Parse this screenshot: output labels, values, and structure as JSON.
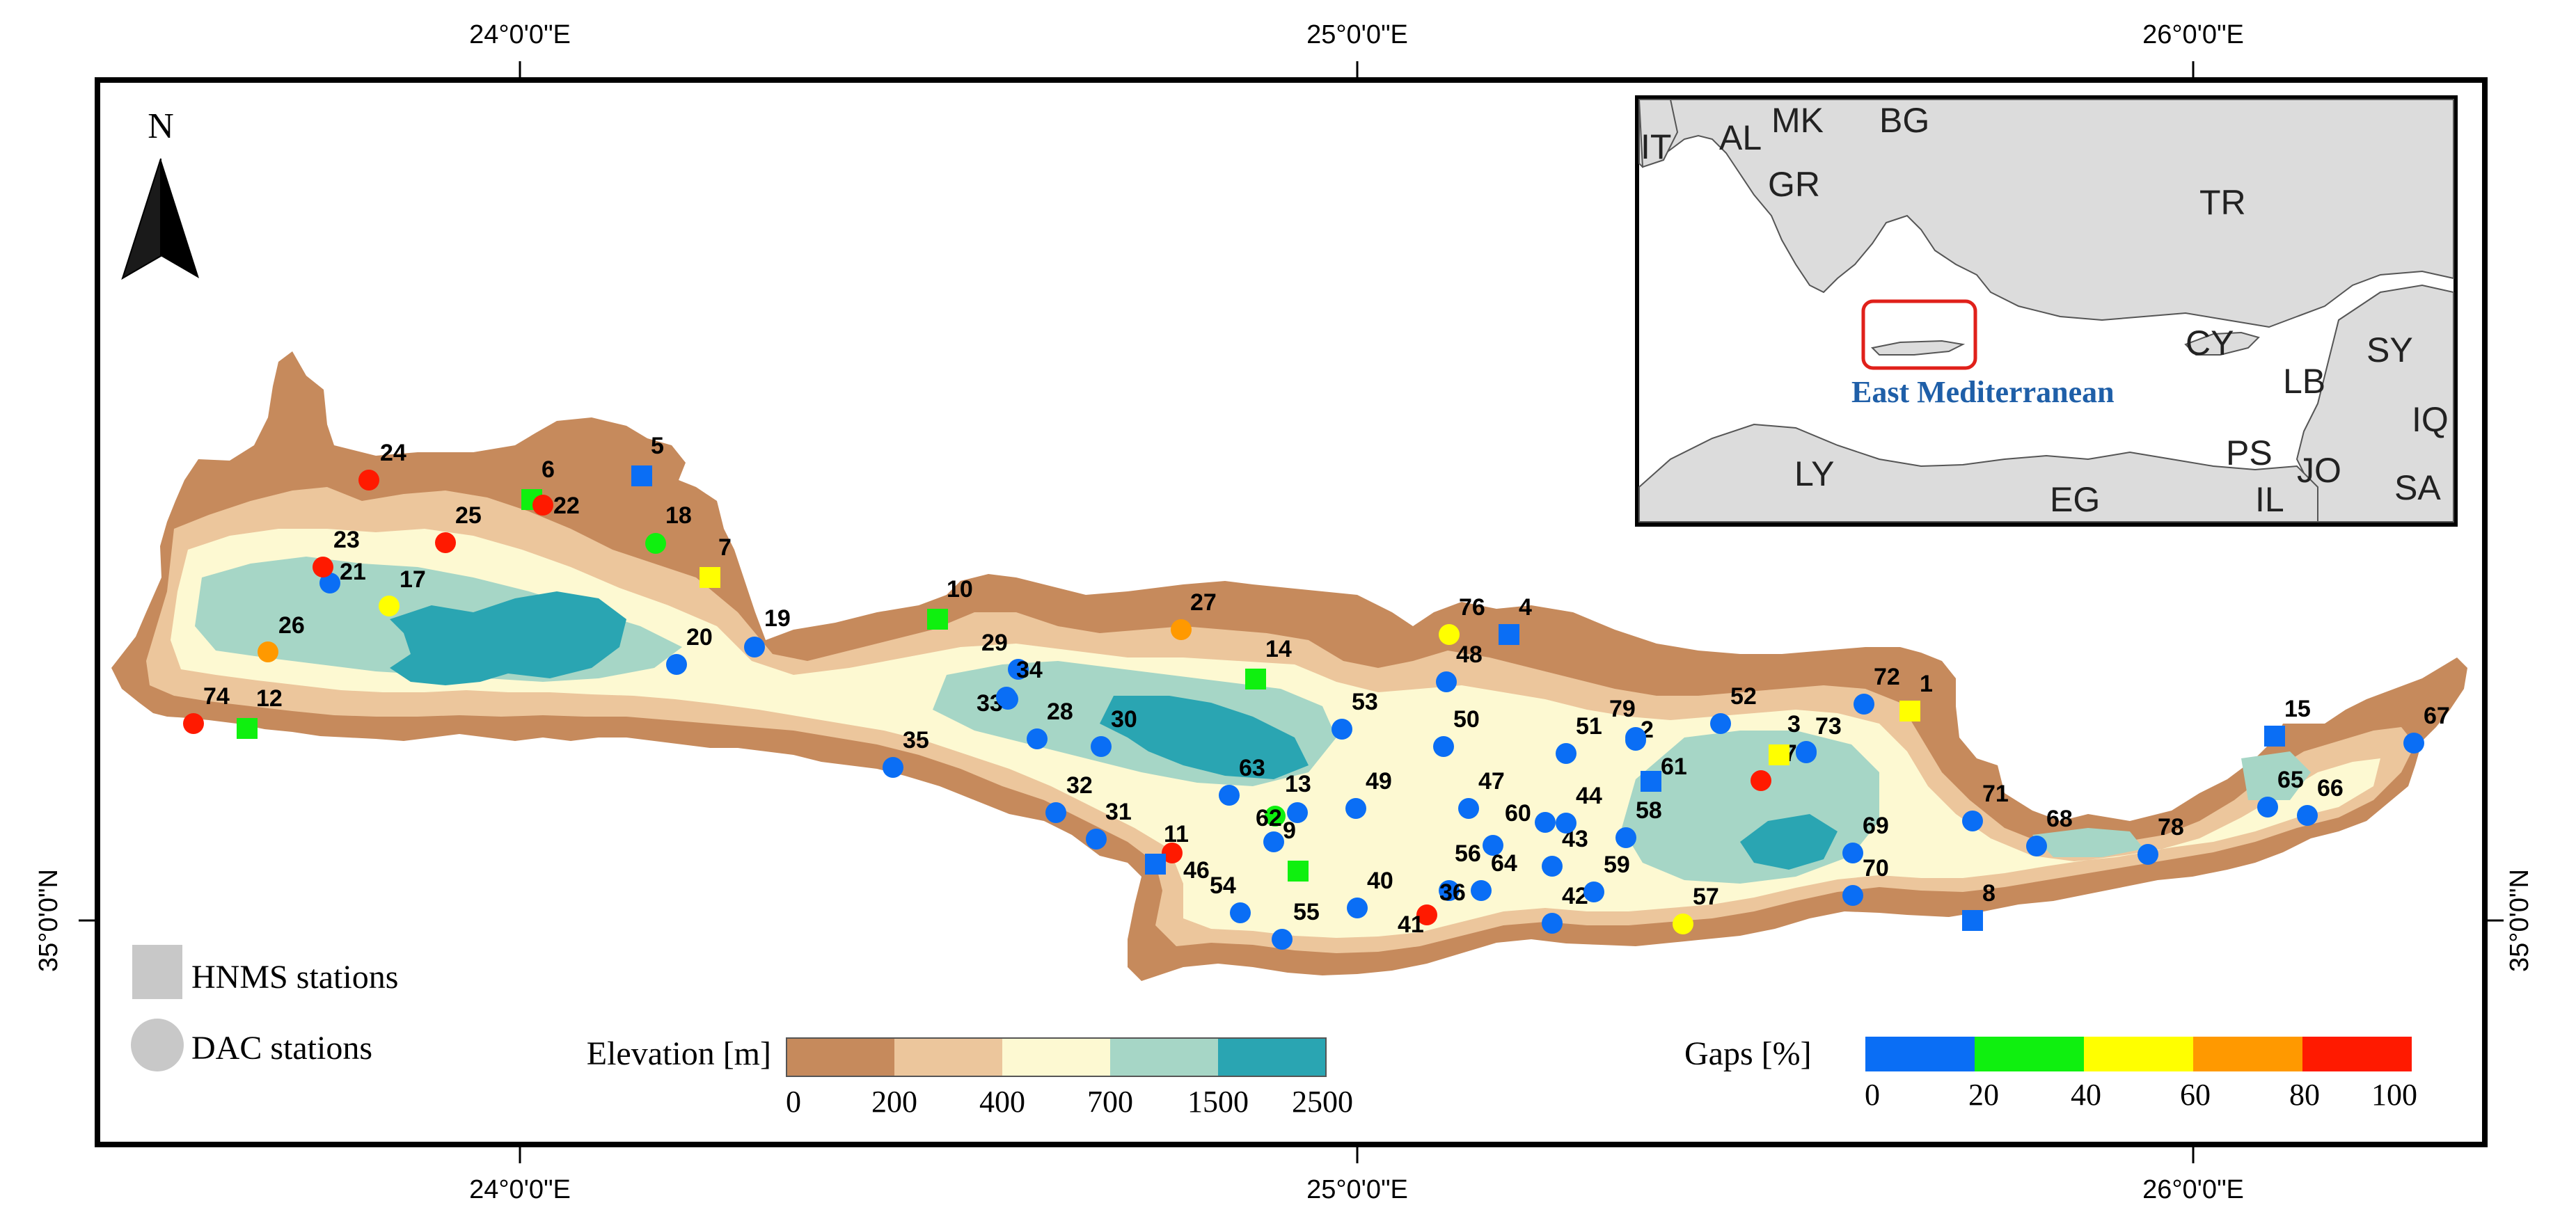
{
  "coordinates": {
    "top": [
      "24°0'0\"E",
      "25°0'0\"E",
      "26°0'0\"E"
    ],
    "bottom": [
      "24°0'0\"E",
      "25°0'0\"E",
      "26°0'0\"E"
    ],
    "left": "35°0'0\"N",
    "right": "35°0'0\"N"
  },
  "north_arrow": {
    "label": "N",
    "icon": "north-arrow-icon"
  },
  "station_types": {
    "hnms": {
      "label": "HNMS stations",
      "symbol": "square"
    },
    "dac": {
      "label": "DAC  stations",
      "symbol": "circle"
    }
  },
  "elevation_legend": {
    "title": "Elevation [m]",
    "ticks": [
      "0",
      "200",
      "400",
      "700",
      "1500",
      "2500"
    ],
    "colors": [
      "#c68a5c",
      "#ecc69c",
      "#fdf9d2",
      "#a6d6c6",
      "#2aa5b2"
    ]
  },
  "gaps_legend": {
    "title": "Gaps [%]",
    "ticks": [
      "0",
      "20",
      "40",
      "60",
      "80",
      "100"
    ],
    "colors": [
      "#0a6ef5",
      "#0ff00f",
      "#ffff00",
      "#ff9900",
      "#ff1a00"
    ]
  },
  "inset": {
    "region_label": "East Mediterranean",
    "countries": [
      "IT",
      "AL",
      "MK",
      "BG",
      "GR",
      "TR",
      "CY",
      "SY",
      "LB",
      "IQ",
      "PS",
      "JO",
      "IL",
      "SA",
      "LY",
      "EG"
    ]
  },
  "stations": [
    {
      "id": "1",
      "type": "hnms",
      "gap": "yellow"
    },
    {
      "id": "2",
      "type": "dac",
      "gap": "blue"
    },
    {
      "id": "3",
      "type": "dac",
      "gap": "blue"
    },
    {
      "id": "4",
      "type": "hnms",
      "gap": "blue"
    },
    {
      "id": "5",
      "type": "hnms",
      "gap": "blue"
    },
    {
      "id": "6",
      "type": "hnms",
      "gap": "green"
    },
    {
      "id": "7",
      "type": "hnms",
      "gap": "yellow"
    },
    {
      "id": "8",
      "type": "hnms",
      "gap": "blue"
    },
    {
      "id": "9",
      "type": "dac",
      "gap": "blue"
    },
    {
      "id": "10",
      "type": "hnms",
      "gap": "green"
    },
    {
      "id": "11",
      "type": "dac",
      "gap": "red"
    },
    {
      "id": "12",
      "type": "hnms",
      "gap": "green"
    },
    {
      "id": "13",
      "type": "dac",
      "gap": "blue"
    },
    {
      "id": "14",
      "type": "hnms",
      "gap": "green"
    },
    {
      "id": "15",
      "type": "hnms",
      "gap": "blue"
    },
    {
      "id": "17",
      "type": "dac",
      "gap": "yellow"
    },
    {
      "id": "18",
      "type": "dac",
      "gap": "green"
    },
    {
      "id": "19",
      "type": "dac",
      "gap": "blue"
    },
    {
      "id": "20",
      "type": "dac",
      "gap": "blue"
    },
    {
      "id": "21",
      "type": "dac",
      "gap": "blue"
    },
    {
      "id": "22",
      "type": "dac",
      "gap": "red"
    },
    {
      "id": "23",
      "type": "dac",
      "gap": "red"
    },
    {
      "id": "24",
      "type": "dac",
      "gap": "red"
    },
    {
      "id": "25",
      "type": "dac",
      "gap": "red"
    },
    {
      "id": "26",
      "type": "dac",
      "gap": "orange"
    },
    {
      "id": "27",
      "type": "dac",
      "gap": "orange"
    },
    {
      "id": "28",
      "type": "dac",
      "gap": "blue"
    },
    {
      "id": "29",
      "type": "dac",
      "gap": "blue"
    },
    {
      "id": "30",
      "type": "dac",
      "gap": "blue"
    },
    {
      "id": "31",
      "type": "dac",
      "gap": "blue"
    },
    {
      "id": "32",
      "type": "dac",
      "gap": "blue"
    },
    {
      "id": "33",
      "type": "dac",
      "gap": "blue"
    },
    {
      "id": "34",
      "type": "dac",
      "gap": "blue"
    },
    {
      "id": "35",
      "type": "dac",
      "gap": "blue"
    },
    {
      "id": "36",
      "type": "dac",
      "gap": "blue"
    },
    {
      "id": "40",
      "type": "dac",
      "gap": "blue"
    },
    {
      "id": "41",
      "type": "dac",
      "gap": "red"
    },
    {
      "id": "42",
      "type": "dac",
      "gap": "blue"
    },
    {
      "id": "43",
      "type": "dac",
      "gap": "blue"
    },
    {
      "id": "44",
      "type": "dac",
      "gap": "blue"
    },
    {
      "id": "46",
      "type": "hnms",
      "gap": "blue"
    },
    {
      "id": "47",
      "type": "dac",
      "gap": "blue"
    },
    {
      "id": "48",
      "type": "dac",
      "gap": "blue"
    },
    {
      "id": "49",
      "type": "dac",
      "gap": "blue"
    },
    {
      "id": "50",
      "type": "dac",
      "gap": "blue"
    },
    {
      "id": "51",
      "type": "dac",
      "gap": "blue"
    },
    {
      "id": "52",
      "type": "dac",
      "gap": "blue"
    },
    {
      "id": "53",
      "type": "dac",
      "gap": "blue"
    },
    {
      "id": "54",
      "type": "dac",
      "gap": "blue"
    },
    {
      "id": "55",
      "type": "dac",
      "gap": "blue"
    },
    {
      "id": "56",
      "type": "dac",
      "gap": "blue"
    },
    {
      "id": "57",
      "type": "dac",
      "gap": "yellow"
    },
    {
      "id": "58",
      "type": "dac",
      "gap": "blue"
    },
    {
      "id": "59",
      "type": "dac",
      "gap": "blue"
    },
    {
      "id": "60",
      "type": "dac",
      "gap": "blue"
    },
    {
      "id": "61",
      "type": "hnms",
      "gap": "blue"
    },
    {
      "id": "62",
      "type": "dac",
      "gap": "green"
    },
    {
      "id": "63",
      "type": "dac",
      "gap": "blue"
    },
    {
      "id": "64",
      "type": "dac",
      "gap": "blue"
    },
    {
      "id": "65",
      "type": "dac",
      "gap": "blue"
    },
    {
      "id": "66",
      "type": "dac",
      "gap": "blue"
    },
    {
      "id": "67",
      "type": "dac",
      "gap": "blue"
    },
    {
      "id": "68",
      "type": "dac",
      "gap": "blue"
    },
    {
      "id": "69",
      "type": "dac",
      "gap": "blue"
    },
    {
      "id": "70",
      "type": "dac",
      "gap": "blue"
    },
    {
      "id": "71",
      "type": "dac",
      "gap": "blue"
    },
    {
      "id": "72",
      "type": "dac",
      "gap": "blue"
    },
    {
      "id": "73",
      "type": "dac",
      "gap": "blue"
    },
    {
      "id": "74",
      "type": "dac",
      "gap": "red"
    },
    {
      "id": "76",
      "type": "dac",
      "gap": "yellow"
    },
    {
      "id": "77",
      "type": "dac",
      "gap": "red"
    },
    {
      "id": "78",
      "type": "dac",
      "gap": "blue"
    },
    {
      "id": "79",
      "type": "dac",
      "gap": "blue"
    }
  ],
  "extra_markers": [
    {
      "type": "hnms",
      "gap": "green",
      "note_station": "9"
    },
    {
      "type": "hnms",
      "gap": "yellow",
      "note_station": "3"
    }
  ]
}
